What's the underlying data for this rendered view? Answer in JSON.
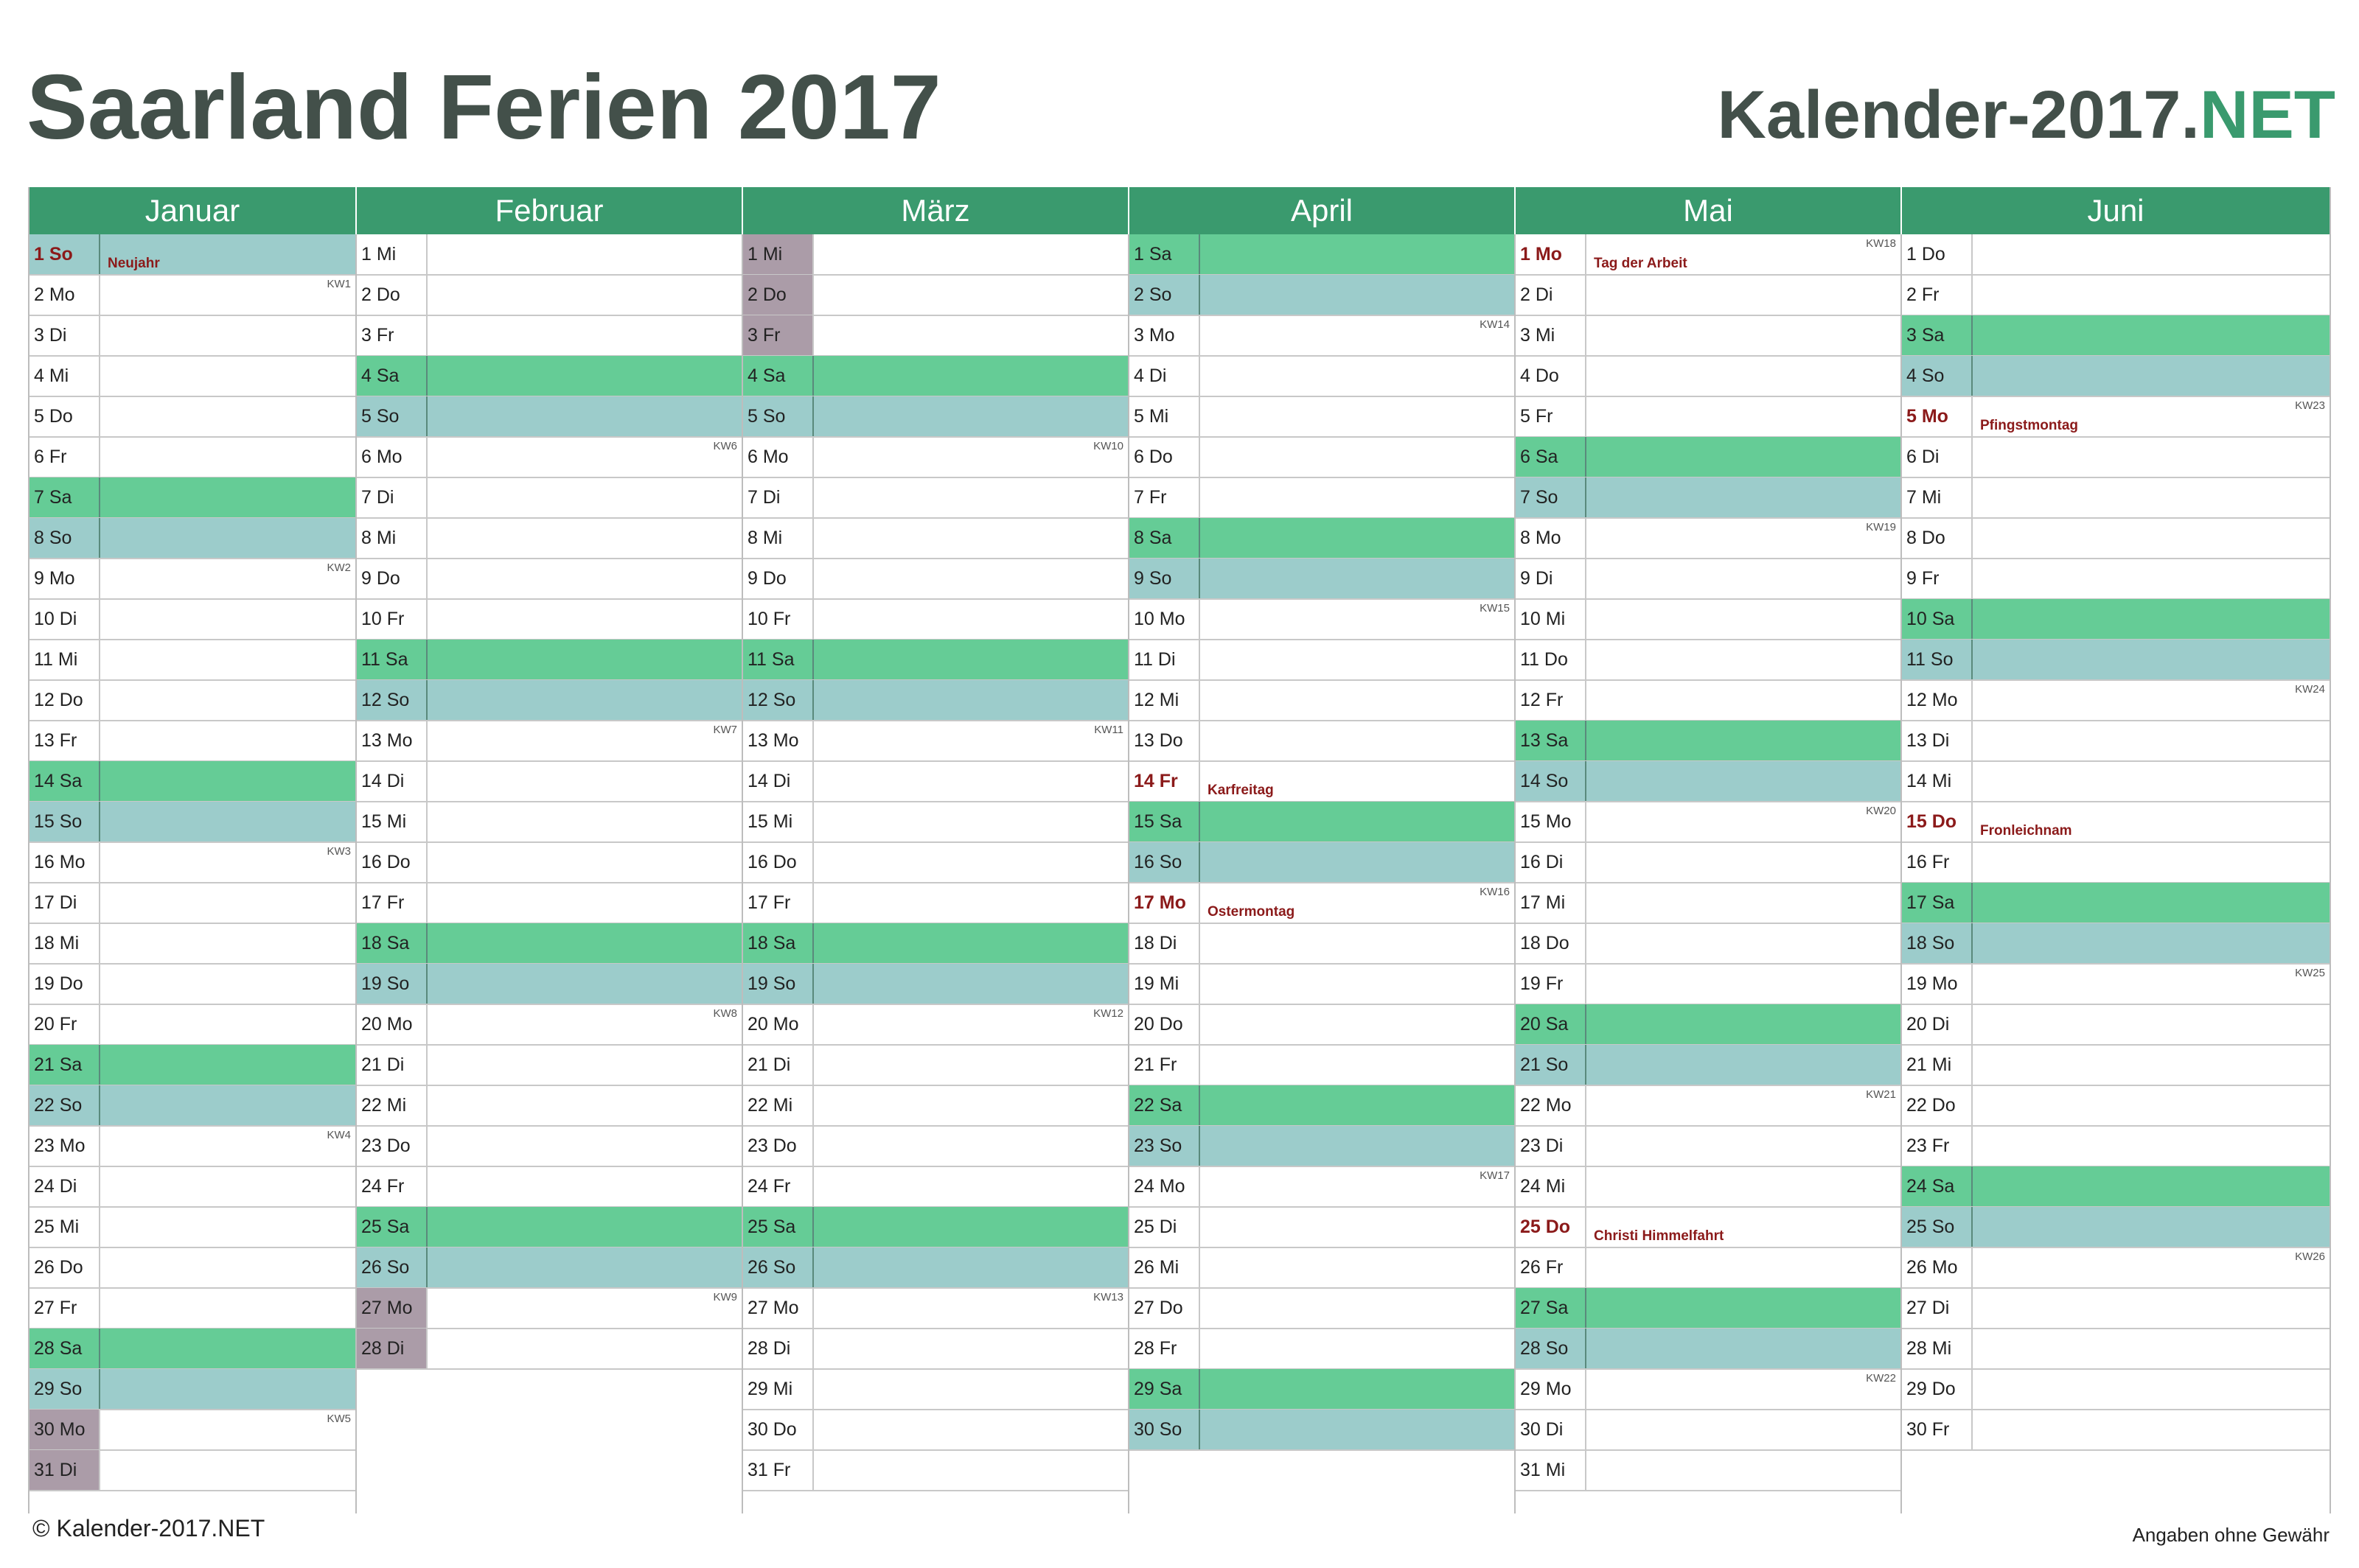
{
  "header": {
    "title": "Saarland Ferien 2017",
    "brand_main": "Kalender-2017.",
    "brand_accent": "NET"
  },
  "colors": {
    "header_green": "#3a9a6e",
    "saturday": "#65cc96",
    "sunday": "#9ccccb",
    "school_holiday": "#ab9ca8",
    "public_holiday_text": "#8b1a1a"
  },
  "footer": {
    "copyright": "© Kalender-2017.NET",
    "disclaimer": "Angaben ohne Gewähr"
  },
  "months": [
    {
      "name": "Januar",
      "days": [
        {
          "label": "1 So",
          "type": "so",
          "ph": true,
          "holiday": "Neujahr"
        },
        {
          "label": "2 Mo",
          "kw": "KW1"
        },
        {
          "label": "3 Di"
        },
        {
          "label": "4 Mi"
        },
        {
          "label": "5 Do"
        },
        {
          "label": "6 Fr"
        },
        {
          "label": "7 Sa",
          "type": "sa"
        },
        {
          "label": "8 So",
          "type": "so"
        },
        {
          "label": "9 Mo",
          "kw": "KW2"
        },
        {
          "label": "10 Di"
        },
        {
          "label": "11 Mi"
        },
        {
          "label": "12 Do"
        },
        {
          "label": "13 Fr"
        },
        {
          "label": "14 Sa",
          "type": "sa"
        },
        {
          "label": "15 So",
          "type": "so"
        },
        {
          "label": "16 Mo",
          "kw": "KW3"
        },
        {
          "label": "17 Di"
        },
        {
          "label": "18 Mi"
        },
        {
          "label": "19 Do"
        },
        {
          "label": "20 Fr"
        },
        {
          "label": "21 Sa",
          "type": "sa"
        },
        {
          "label": "22 So",
          "type": "so"
        },
        {
          "label": "23 Mo",
          "kw": "KW4"
        },
        {
          "label": "24 Di"
        },
        {
          "label": "25 Mi"
        },
        {
          "label": "26 Do"
        },
        {
          "label": "27 Fr"
        },
        {
          "label": "28 Sa",
          "type": "sa"
        },
        {
          "label": "29 So",
          "type": "so"
        },
        {
          "label": "30 Mo",
          "kw": "KW5",
          "hol": true
        },
        {
          "label": "31 Di",
          "hol": true
        }
      ]
    },
    {
      "name": "Februar",
      "days": [
        {
          "label": "1 Mi"
        },
        {
          "label": "2 Do"
        },
        {
          "label": "3 Fr"
        },
        {
          "label": "4 Sa",
          "type": "sa"
        },
        {
          "label": "5 So",
          "type": "so"
        },
        {
          "label": "6 Mo",
          "kw": "KW6"
        },
        {
          "label": "7 Di"
        },
        {
          "label": "8 Mi"
        },
        {
          "label": "9 Do"
        },
        {
          "label": "10 Fr"
        },
        {
          "label": "11 Sa",
          "type": "sa"
        },
        {
          "label": "12 So",
          "type": "so"
        },
        {
          "label": "13 Mo",
          "kw": "KW7"
        },
        {
          "label": "14 Di"
        },
        {
          "label": "15 Mi"
        },
        {
          "label": "16 Do"
        },
        {
          "label": "17 Fr"
        },
        {
          "label": "18 Sa",
          "type": "sa"
        },
        {
          "label": "19 So",
          "type": "so"
        },
        {
          "label": "20 Mo",
          "kw": "KW8"
        },
        {
          "label": "21 Di"
        },
        {
          "label": "22 Mi"
        },
        {
          "label": "23 Do"
        },
        {
          "label": "24 Fr"
        },
        {
          "label": "25 Sa",
          "type": "sa"
        },
        {
          "label": "26 So",
          "type": "so"
        },
        {
          "label": "27 Mo",
          "kw": "KW9",
          "hol": true
        },
        {
          "label": "28 Di",
          "hol": true
        }
      ]
    },
    {
      "name": "März",
      "days": [
        {
          "label": "1 Mi",
          "hol": true
        },
        {
          "label": "2 Do",
          "hol": true
        },
        {
          "label": "3 Fr",
          "hol": true
        },
        {
          "label": "4 Sa",
          "type": "sa"
        },
        {
          "label": "5 So",
          "type": "so"
        },
        {
          "label": "6 Mo",
          "kw": "KW10"
        },
        {
          "label": "7 Di"
        },
        {
          "label": "8 Mi"
        },
        {
          "label": "9 Do"
        },
        {
          "label": "10 Fr"
        },
        {
          "label": "11 Sa",
          "type": "sa"
        },
        {
          "label": "12 So",
          "type": "so"
        },
        {
          "label": "13 Mo",
          "kw": "KW11"
        },
        {
          "label": "14 Di"
        },
        {
          "label": "15 Mi"
        },
        {
          "label": "16 Do"
        },
        {
          "label": "17 Fr"
        },
        {
          "label": "18 Sa",
          "type": "sa"
        },
        {
          "label": "19 So",
          "type": "so"
        },
        {
          "label": "20 Mo",
          "kw": "KW12"
        },
        {
          "label": "21 Di"
        },
        {
          "label": "22 Mi"
        },
        {
          "label": "23 Do"
        },
        {
          "label": "24 Fr"
        },
        {
          "label": "25 Sa",
          "type": "sa"
        },
        {
          "label": "26 So",
          "type": "so"
        },
        {
          "label": "27 Mo",
          "kw": "KW13"
        },
        {
          "label": "28 Di"
        },
        {
          "label": "29 Mi"
        },
        {
          "label": "30 Do"
        },
        {
          "label": "31 Fr"
        }
      ]
    },
    {
      "name": "April",
      "days": [
        {
          "label": "1 Sa",
          "type": "sa"
        },
        {
          "label": "2 So",
          "type": "so"
        },
        {
          "label": "3 Mo",
          "kw": "KW14"
        },
        {
          "label": "4 Di"
        },
        {
          "label": "5 Mi"
        },
        {
          "label": "6 Do"
        },
        {
          "label": "7 Fr"
        },
        {
          "label": "8 Sa",
          "type": "sa"
        },
        {
          "label": "9 So",
          "type": "so"
        },
        {
          "label": "10 Mo",
          "kw": "KW15"
        },
        {
          "label": "11 Di"
        },
        {
          "label": "12 Mi"
        },
        {
          "label": "13 Do"
        },
        {
          "label": "14 Fr",
          "ph": true,
          "holiday": "Karfreitag"
        },
        {
          "label": "15 Sa",
          "type": "sa"
        },
        {
          "label": "16 So",
          "type": "so"
        },
        {
          "label": "17 Mo",
          "kw": "KW16",
          "ph": true,
          "holiday": "Ostermontag"
        },
        {
          "label": "18 Di"
        },
        {
          "label": "19 Mi"
        },
        {
          "label": "20 Do"
        },
        {
          "label": "21 Fr"
        },
        {
          "label": "22 Sa",
          "type": "sa"
        },
        {
          "label": "23 So",
          "type": "so"
        },
        {
          "label": "24 Mo",
          "kw": "KW17"
        },
        {
          "label": "25 Di"
        },
        {
          "label": "26 Mi"
        },
        {
          "label": "27 Do"
        },
        {
          "label": "28 Fr"
        },
        {
          "label": "29 Sa",
          "type": "sa"
        },
        {
          "label": "30 So",
          "type": "so"
        }
      ]
    },
    {
      "name": "Mai",
      "days": [
        {
          "label": "1 Mo",
          "kw": "KW18",
          "ph": true,
          "holiday": "Tag der Arbeit"
        },
        {
          "label": "2 Di"
        },
        {
          "label": "3 Mi"
        },
        {
          "label": "4 Do"
        },
        {
          "label": "5 Fr"
        },
        {
          "label": "6 Sa",
          "type": "sa"
        },
        {
          "label": "7 So",
          "type": "so"
        },
        {
          "label": "8 Mo",
          "kw": "KW19"
        },
        {
          "label": "9 Di"
        },
        {
          "label": "10 Mi"
        },
        {
          "label": "11 Do"
        },
        {
          "label": "12 Fr"
        },
        {
          "label": "13 Sa",
          "type": "sa"
        },
        {
          "label": "14 So",
          "type": "so"
        },
        {
          "label": "15 Mo",
          "kw": "KW20"
        },
        {
          "label": "16 Di"
        },
        {
          "label": "17 Mi"
        },
        {
          "label": "18 Do"
        },
        {
          "label": "19 Fr"
        },
        {
          "label": "20 Sa",
          "type": "sa"
        },
        {
          "label": "21 So",
          "type": "so"
        },
        {
          "label": "22 Mo",
          "kw": "KW21"
        },
        {
          "label": "23 Di"
        },
        {
          "label": "24 Mi"
        },
        {
          "label": "25 Do",
          "ph": true,
          "holiday": "Christi Himmelfahrt"
        },
        {
          "label": "26 Fr"
        },
        {
          "label": "27 Sa",
          "type": "sa"
        },
        {
          "label": "28 So",
          "type": "so"
        },
        {
          "label": "29 Mo",
          "kw": "KW22"
        },
        {
          "label": "30 Di"
        },
        {
          "label": "31 Mi"
        }
      ]
    },
    {
      "name": "Juni",
      "days": [
        {
          "label": "1 Do"
        },
        {
          "label": "2 Fr"
        },
        {
          "label": "3 Sa",
          "type": "sa"
        },
        {
          "label": "4 So",
          "type": "so"
        },
        {
          "label": "5 Mo",
          "kw": "KW23",
          "ph": true,
          "holiday": "Pfingstmontag"
        },
        {
          "label": "6 Di"
        },
        {
          "label": "7 Mi"
        },
        {
          "label": "8 Do"
        },
        {
          "label": "9 Fr"
        },
        {
          "label": "10 Sa",
          "type": "sa"
        },
        {
          "label": "11 So",
          "type": "so"
        },
        {
          "label": "12 Mo",
          "kw": "KW24"
        },
        {
          "label": "13 Di"
        },
        {
          "label": "14 Mi"
        },
        {
          "label": "15 Do",
          "ph": true,
          "holiday": "Fronleichnam"
        },
        {
          "label": "16 Fr"
        },
        {
          "label": "17 Sa",
          "type": "sa"
        },
        {
          "label": "18 So",
          "type": "so"
        },
        {
          "label": "19 Mo",
          "kw": "KW25"
        },
        {
          "label": "20 Di"
        },
        {
          "label": "21 Mi"
        },
        {
          "label": "22 Do"
        },
        {
          "label": "23 Fr"
        },
        {
          "label": "24 Sa",
          "type": "sa"
        },
        {
          "label": "25 So",
          "type": "so"
        },
        {
          "label": "26 Mo",
          "kw": "KW26"
        },
        {
          "label": "27 Di"
        },
        {
          "label": "28 Mi"
        },
        {
          "label": "29 Do"
        },
        {
          "label": "30 Fr"
        }
      ]
    }
  ]
}
